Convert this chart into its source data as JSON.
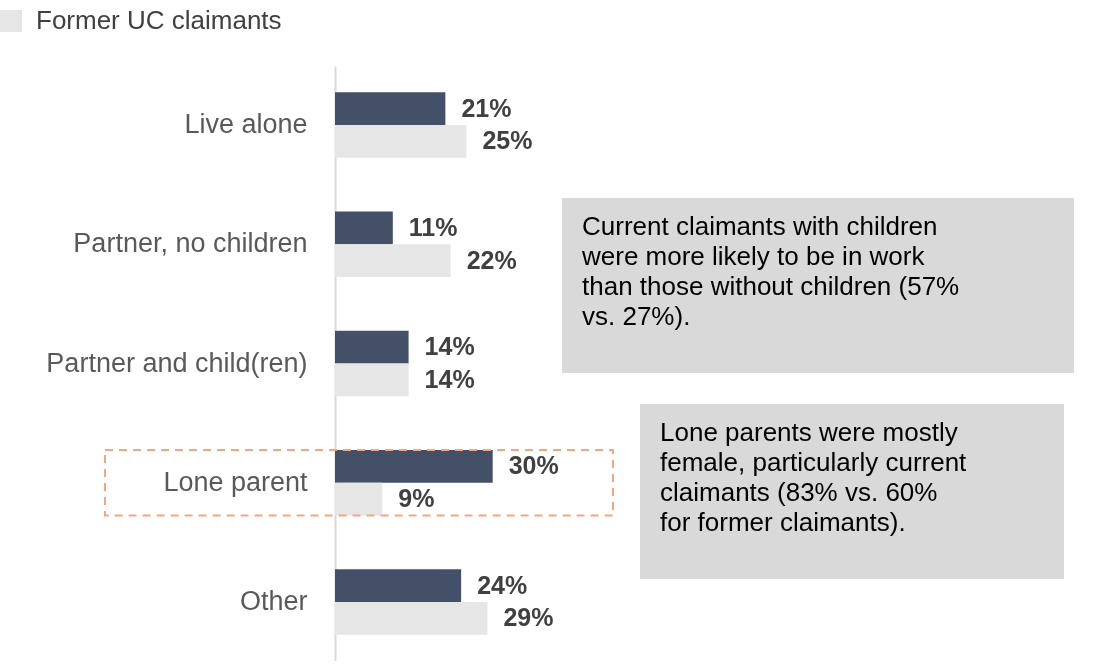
{
  "chart_data": {
    "type": "bar",
    "orientation": "horizontal",
    "categories": [
      "Live alone",
      "Partner, no children",
      "Partner and child(ren)",
      "Lone parent",
      "Other"
    ],
    "series": [
      {
        "color": "#435068",
        "values": [
          21,
          11,
          14,
          30,
          24
        ],
        "value_labels": [
          "21%",
          "11%",
          "14%",
          "30%",
          "24%"
        ]
      },
      {
        "name": "Former UC claimants",
        "color": "#e6e6e6",
        "values": [
          25,
          22,
          14,
          9,
          29
        ],
        "value_labels": [
          "25%",
          "22%",
          "14%",
          "9%",
          "29%"
        ]
      }
    ],
    "legend": "top",
    "grid": false,
    "annotations": [
      "Current claimants with children\nwere more likely to be in work\nthan those without children (57%\nvs. 27%).",
      "Lone parents were mostly\nfemale, particularly current\nclaimants (83% vs. 60%\nfor former claimants)."
    ]
  }
}
